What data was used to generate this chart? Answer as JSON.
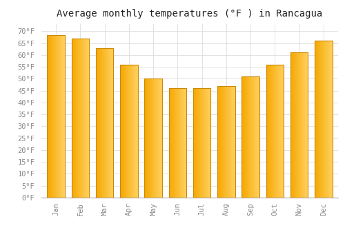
{
  "title": "Average monthly temperatures (°F ) in Rancagua",
  "months": [
    "Jan",
    "Feb",
    "Mar",
    "Apr",
    "May",
    "Jun",
    "Jul",
    "Aug",
    "Sep",
    "Oct",
    "Nov",
    "Dec"
  ],
  "values": [
    68.5,
    67.0,
    63.0,
    56.0,
    50.0,
    46.0,
    46.0,
    47.0,
    51.0,
    56.0,
    61.0,
    66.0
  ],
  "bar_color_left": "#F5A800",
  "bar_color_right": "#FFD060",
  "bar_edge_color": "#CC8800",
  "background_color": "#FFFFFF",
  "grid_color": "#DDDDDD",
  "ylim": [
    0,
    73
  ],
  "ytick_step": 5,
  "title_fontsize": 10,
  "tick_fontsize": 7.5,
  "tick_color": "#888888"
}
